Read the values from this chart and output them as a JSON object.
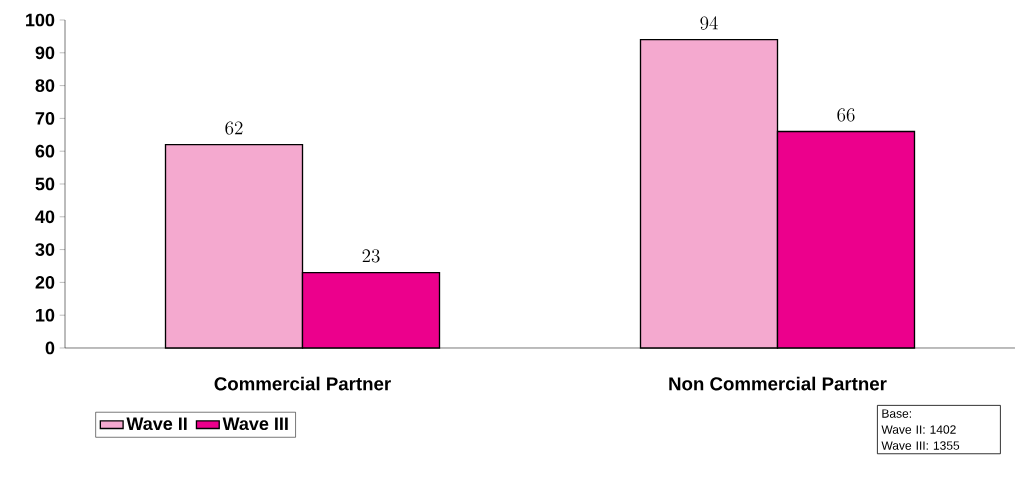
{
  "chart_data": {
    "type": "bar",
    "categories": [
      "Commercial Partner",
      "Non Commercial Partner"
    ],
    "series": [
      {
        "name": "Wave II",
        "color": "#f4a9cf",
        "values": [
          62,
          94
        ]
      },
      {
        "name": "Wave III",
        "color": "#ec008c",
        "values": [
          23,
          66
        ]
      }
    ],
    "ylim": [
      0,
      100
    ],
    "yticks": [
      0,
      10,
      20,
      30,
      40,
      50,
      60,
      70,
      80,
      90,
      100
    ],
    "data_labels": true,
    "legend": "bottom left",
    "annotations": [
      "Base:",
      "Wave II: 1402",
      "Wave III: 1355"
    ]
  }
}
